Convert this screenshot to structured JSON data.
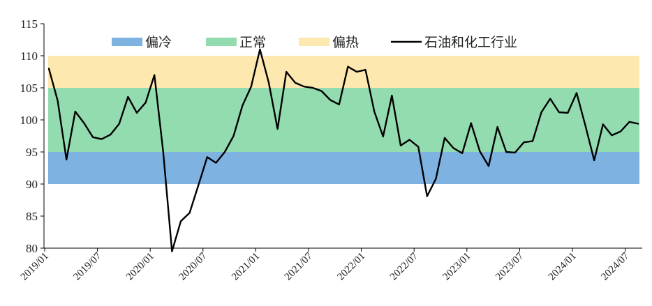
{
  "chart_data": {
    "type": "line",
    "title": "",
    "xlabel": "",
    "ylabel": "",
    "ylim": [
      80,
      115
    ],
    "y_ticks": [
      "80",
      "85",
      "90",
      "95",
      "100",
      "105",
      "110",
      "115"
    ],
    "x_tick_labels": [
      "2019/01",
      "2019/07",
      "2020/01",
      "2020/07",
      "2021/01",
      "2021/07",
      "2022/01",
      "2022/07",
      "2023/01",
      "2023/07",
      "2024/01",
      "2024/07"
    ],
    "x_start": "2019/01",
    "bands": [
      {
        "name": "偏冷",
        "from": 90,
        "to": 95,
        "color": "#7eb2e0"
      },
      {
        "name": "正常",
        "from": 95,
        "to": 105,
        "color": "#92dcb0"
      },
      {
        "name": "偏热",
        "from": 105,
        "to": 110,
        "color": "#fde8b0"
      }
    ],
    "series": [
      {
        "name": "石油和化工行业",
        "color": "#000000",
        "values": [
          108.0,
          103.0,
          93.8,
          101.3,
          99.5,
          97.3,
          97.0,
          97.7,
          99.4,
          103.6,
          101.1,
          102.7,
          107.0,
          95.0,
          79.5,
          84.2,
          85.5,
          89.8,
          94.2,
          93.3,
          95.0,
          97.5,
          102.2,
          105.2,
          111.0,
          105.8,
          98.6,
          107.5,
          105.8,
          105.2,
          105.0,
          104.5,
          103.1,
          102.4,
          108.3,
          107.5,
          107.8,
          101.3,
          97.4,
          103.8,
          96.0,
          96.9,
          95.8,
          88.1,
          90.8,
          97.2,
          95.6,
          94.8,
          99.5,
          95.1,
          92.8,
          98.9,
          95.0,
          94.9,
          96.5,
          96.7,
          101.2,
          103.3,
          101.2,
          101.1,
          104.2,
          99.1,
          93.7,
          99.3,
          97.6,
          98.2,
          99.7,
          99.4
        ]
      }
    ],
    "legend_position": "top"
  }
}
